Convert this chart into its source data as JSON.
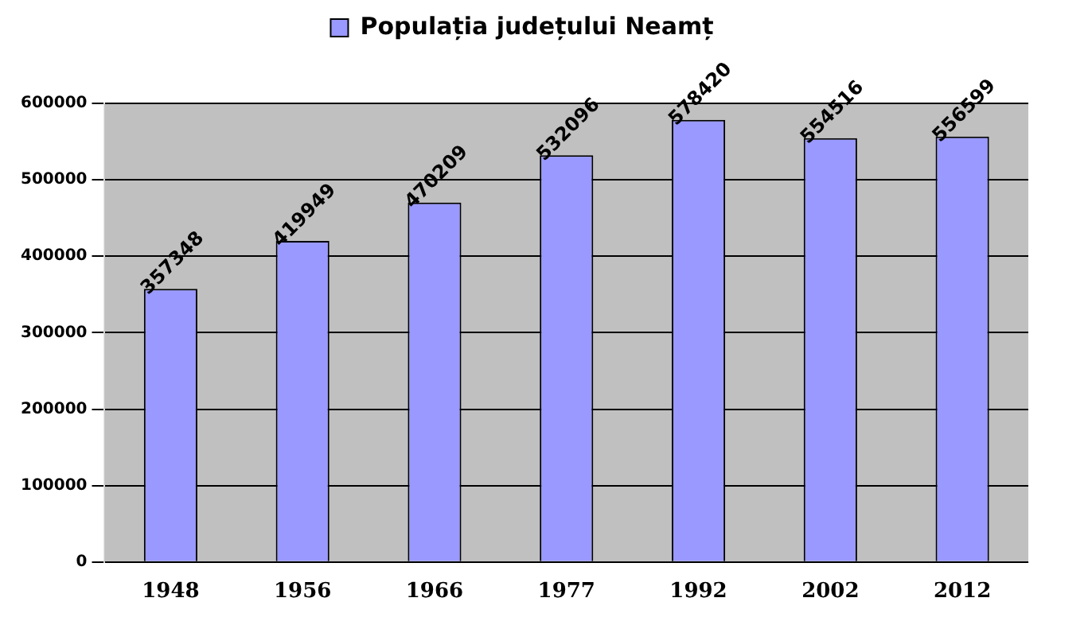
{
  "chart_data": {
    "type": "bar",
    "categories": [
      "1948",
      "1956",
      "1966",
      "1977",
      "1992",
      "2002",
      "2012"
    ],
    "series": [
      {
        "name": "Populația județului Neamț",
        "color": "#9999ff",
        "values": [
          357348,
          419949,
          470209,
          532096,
          578420,
          554516,
          556599
        ]
      }
    ],
    "ylim": [
      0,
      600000
    ],
    "yticks": [
      0,
      100000,
      200000,
      300000,
      400000,
      500000,
      600000
    ],
    "grid": "y",
    "legend": "top",
    "data_labels": true
  }
}
